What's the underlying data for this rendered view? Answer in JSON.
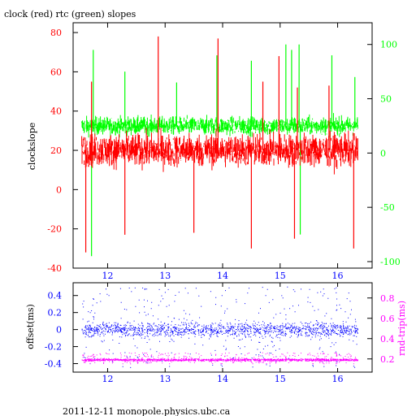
{
  "footer": "2011-12-11 monopole.physics.ubc.ca",
  "colors": {
    "clock": "#ff0000",
    "rtc": "#00ff00",
    "offset": "#0000ff",
    "roundtrip": "#ff00ff",
    "frame": "#000000"
  },
  "chart_data": [
    {
      "type": "line",
      "title": "clock (red) rtc (green) slopes",
      "ylabel": "clockslope",
      "y2label": "",
      "xlim": [
        11.4,
        16.6
      ],
      "ylim": [
        -40,
        85
      ],
      "y2lim": [
        -106,
        120
      ],
      "x_ticks": [
        12,
        13,
        14,
        15,
        16
      ],
      "y_ticks": [
        -40,
        -20,
        0,
        20,
        40,
        60,
        80
      ],
      "y2_ticks": [
        -100,
        -50,
        0,
        50,
        100
      ],
      "grid": false,
      "series": [
        {
          "name": "clock",
          "axis": "left",
          "x_range": [
            11.55,
            16.35
          ],
          "typical_range": [
            10,
            30
          ],
          "spikes": [
            {
              "x": 11.62,
              "y": -32
            },
            {
              "x": 11.72,
              "y": 55
            },
            {
              "x": 12.3,
              "y": -23
            },
            {
              "x": 12.88,
              "y": 78
            },
            {
              "x": 13.5,
              "y": -22
            },
            {
              "x": 13.92,
              "y": 77
            },
            {
              "x": 14.5,
              "y": -30
            },
            {
              "x": 14.7,
              "y": 55
            },
            {
              "x": 14.98,
              "y": 68
            },
            {
              "x": 15.25,
              "y": -25
            },
            {
              "x": 15.3,
              "y": 52
            },
            {
              "x": 15.85,
              "y": 53
            },
            {
              "x": 16.28,
              "y": -30
            }
          ]
        },
        {
          "name": "rtc",
          "axis": "right",
          "x_range": [
            11.55,
            16.35
          ],
          "typical_range": [
            15,
            35
          ],
          "spikes": [
            {
              "x": 11.72,
              "y": -95
            },
            {
              "x": 11.75,
              "y": 95
            },
            {
              "x": 12.3,
              "y": 75
            },
            {
              "x": 13.2,
              "y": 65
            },
            {
              "x": 13.9,
              "y": 90
            },
            {
              "x": 14.5,
              "y": 85
            },
            {
              "x": 15.1,
              "y": 100
            },
            {
              "x": 15.2,
              "y": 95
            },
            {
              "x": 15.33,
              "y": 100
            },
            {
              "x": 15.35,
              "y": -75
            },
            {
              "x": 15.9,
              "y": 90
            },
            {
              "x": 16.3,
              "y": 70
            }
          ]
        }
      ]
    },
    {
      "type": "scatter",
      "title": "",
      "ylabel": "offset(ms)",
      "y2label": "rnd-trip(ms)",
      "xlim": [
        11.4,
        16.6
      ],
      "ylim": [
        -0.5,
        0.55
      ],
      "y2lim": [
        0.07,
        0.95
      ],
      "x_ticks": [
        12,
        13,
        14,
        15,
        16
      ],
      "y_ticks": [
        -0.4,
        -0.2,
        0,
        0.2,
        0.4
      ],
      "y2_ticks": [
        0.2,
        0.4,
        0.6,
        0.8
      ],
      "grid": false,
      "series": [
        {
          "name": "offset",
          "axis": "left",
          "x_range": [
            11.55,
            16.35
          ],
          "center": 0.0,
          "spread": [
            -0.45,
            0.5
          ]
        },
        {
          "name": "rnd-trip",
          "axis": "right",
          "x_range": [
            11.55,
            16.35
          ],
          "center": 0.19,
          "spread": [
            0.15,
            0.26
          ]
        }
      ]
    }
  ]
}
